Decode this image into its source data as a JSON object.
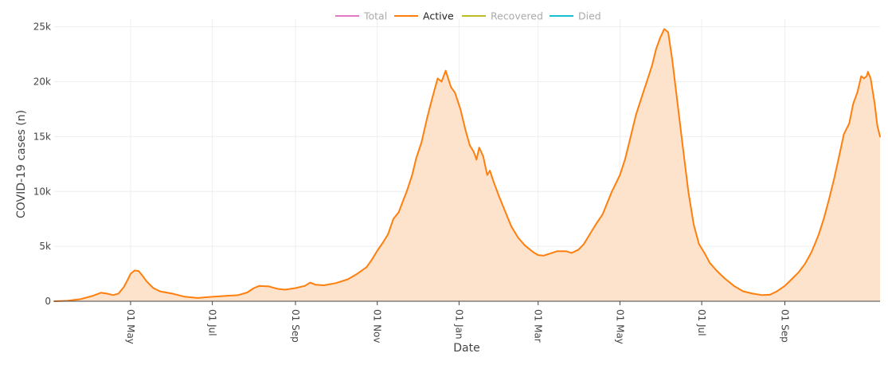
{
  "chart_data": {
    "type": "area",
    "xlabel": "Date",
    "ylabel": "COVID-19 cases (n)",
    "x_ticks": [
      {
        "date": "2020-05-01",
        "label": "01 May"
      },
      {
        "date": "2020-07-01",
        "label": "01 Jul"
      },
      {
        "date": "2020-09-01",
        "label": "01 Sep"
      },
      {
        "date": "2020-11-01",
        "label": "01 Nov"
      },
      {
        "date": "2021-01-01",
        "label": "01 Jan"
      },
      {
        "date": "2021-03-01",
        "label": "01 Mar"
      },
      {
        "date": "2021-05-01",
        "label": "01 May"
      },
      {
        "date": "2021-07-01",
        "label": "01 Jul"
      },
      {
        "date": "2021-09-01",
        "label": "01 Sep"
      }
    ],
    "y_ticks": [
      {
        "value": 0,
        "label": "0"
      },
      {
        "value": 5000,
        "label": "5k"
      },
      {
        "value": 10000,
        "label": "10k"
      },
      {
        "value": 15000,
        "label": "15k"
      },
      {
        "value": 20000,
        "label": "20k"
      },
      {
        "value": 25000,
        "label": "25k"
      }
    ],
    "xlim": [
      "2020-03-05",
      "2021-11-11"
    ],
    "ylim": [
      0,
      25700
    ],
    "grid": true,
    "legend_position": "top-center",
    "legend": [
      {
        "name": "Total",
        "color": "#e377c2",
        "active": false
      },
      {
        "name": "Active",
        "color": "#ff7f0e",
        "active": true
      },
      {
        "name": "Recovered",
        "color": "#bcbd22",
        "active": false
      },
      {
        "name": "Died",
        "color": "#17becf",
        "active": false
      }
    ],
    "series": [
      {
        "name": "Active",
        "color": "#ff7f0e",
        "fill": "#fde3cc",
        "points": [
          [
            "2020-03-05",
            0
          ],
          [
            "2020-03-15",
            40
          ],
          [
            "2020-03-25",
            200
          ],
          [
            "2020-04-03",
            500
          ],
          [
            "2020-04-09",
            780
          ],
          [
            "2020-04-14",
            680
          ],
          [
            "2020-04-18",
            560
          ],
          [
            "2020-04-22",
            700
          ],
          [
            "2020-04-26",
            1300
          ],
          [
            "2020-04-29",
            2000
          ],
          [
            "2020-05-01",
            2500
          ],
          [
            "2020-05-04",
            2800
          ],
          [
            "2020-05-07",
            2750
          ],
          [
            "2020-05-10",
            2300
          ],
          [
            "2020-05-13",
            1800
          ],
          [
            "2020-05-18",
            1200
          ],
          [
            "2020-05-23",
            900
          ],
          [
            "2020-06-01",
            700
          ],
          [
            "2020-06-10",
            420
          ],
          [
            "2020-06-20",
            300
          ],
          [
            "2020-06-30",
            400
          ],
          [
            "2020-07-10",
            480
          ],
          [
            "2020-07-20",
            550
          ],
          [
            "2020-07-27",
            800
          ],
          [
            "2020-08-01",
            1200
          ],
          [
            "2020-08-05",
            1400
          ],
          [
            "2020-08-12",
            1350
          ],
          [
            "2020-08-18",
            1150
          ],
          [
            "2020-08-24",
            1050
          ],
          [
            "2020-09-01",
            1200
          ],
          [
            "2020-09-08",
            1400
          ],
          [
            "2020-09-12",
            1700
          ],
          [
            "2020-09-16",
            1500
          ],
          [
            "2020-09-22",
            1450
          ],
          [
            "2020-10-01",
            1650
          ],
          [
            "2020-10-10",
            2000
          ],
          [
            "2020-10-17",
            2500
          ],
          [
            "2020-10-24",
            3100
          ],
          [
            "2020-10-28",
            3800
          ],
          [
            "2020-11-01",
            4600
          ],
          [
            "2020-11-05",
            5300
          ],
          [
            "2020-11-09",
            6100
          ],
          [
            "2020-11-13",
            7500
          ],
          [
            "2020-11-17",
            8100
          ],
          [
            "2020-11-21",
            9400
          ],
          [
            "2020-11-23",
            10000
          ],
          [
            "2020-11-27",
            11500
          ],
          [
            "2020-11-30",
            13000
          ],
          [
            "2020-12-04",
            14500
          ],
          [
            "2020-12-08",
            16600
          ],
          [
            "2020-12-12",
            18500
          ],
          [
            "2020-12-16",
            20300
          ],
          [
            "2020-12-19",
            20000
          ],
          [
            "2020-12-22",
            21000
          ],
          [
            "2020-12-26",
            19500
          ],
          [
            "2020-12-29",
            19000
          ],
          [
            "2021-01-02",
            17500
          ],
          [
            "2021-01-06",
            15500
          ],
          [
            "2021-01-09",
            14200
          ],
          [
            "2021-01-12",
            13600
          ],
          [
            "2021-01-14",
            12900
          ],
          [
            "2021-01-16",
            14000
          ],
          [
            "2021-01-19",
            13200
          ],
          [
            "2021-01-22",
            11500
          ],
          [
            "2021-01-24",
            11900
          ],
          [
            "2021-01-27",
            10800
          ],
          [
            "2021-01-31",
            9500
          ],
          [
            "2021-02-05",
            8000
          ],
          [
            "2021-02-09",
            6800
          ],
          [
            "2021-02-14",
            5800
          ],
          [
            "2021-02-19",
            5100
          ],
          [
            "2021-02-25",
            4500
          ],
          [
            "2021-03-01",
            4200
          ],
          [
            "2021-03-05",
            4150
          ],
          [
            "2021-03-10",
            4350
          ],
          [
            "2021-03-15",
            4550
          ],
          [
            "2021-03-22",
            4550
          ],
          [
            "2021-03-26",
            4400
          ],
          [
            "2021-03-31",
            4700
          ],
          [
            "2021-04-04",
            5200
          ],
          [
            "2021-04-08",
            6000
          ],
          [
            "2021-04-13",
            7000
          ],
          [
            "2021-04-18",
            7900
          ],
          [
            "2021-04-25",
            10000
          ],
          [
            "2021-05-01",
            11500
          ],
          [
            "2021-05-05",
            13000
          ],
          [
            "2021-05-09",
            15000
          ],
          [
            "2021-05-13",
            17000
          ],
          [
            "2021-05-17",
            18500
          ],
          [
            "2021-05-21",
            20000
          ],
          [
            "2021-05-25",
            21500
          ],
          [
            "2021-05-28",
            23000
          ],
          [
            "2021-05-31",
            24000
          ],
          [
            "2021-06-03",
            24800
          ],
          [
            "2021-06-06",
            24500
          ],
          [
            "2021-06-09",
            22000
          ],
          [
            "2021-06-13",
            18000
          ],
          [
            "2021-06-17",
            14000
          ],
          [
            "2021-06-21",
            10000
          ],
          [
            "2021-06-25",
            7000
          ],
          [
            "2021-06-29",
            5200
          ],
          [
            "2021-07-03",
            4400
          ],
          [
            "2021-07-07",
            3500
          ],
          [
            "2021-07-12",
            2800
          ],
          [
            "2021-07-18",
            2100
          ],
          [
            "2021-07-25",
            1400
          ],
          [
            "2021-08-01",
            900
          ],
          [
            "2021-08-08",
            700
          ],
          [
            "2021-08-15",
            560
          ],
          [
            "2021-08-21",
            600
          ],
          [
            "2021-08-26",
            900
          ],
          [
            "2021-09-01",
            1400
          ],
          [
            "2021-09-06",
            2000
          ],
          [
            "2021-09-11",
            2600
          ],
          [
            "2021-09-16",
            3400
          ],
          [
            "2021-09-21",
            4500
          ],
          [
            "2021-09-26",
            6000
          ],
          [
            "2021-09-30",
            7500
          ],
          [
            "2021-10-04",
            9300
          ],
          [
            "2021-10-08",
            11300
          ],
          [
            "2021-10-12",
            13500
          ],
          [
            "2021-10-15",
            15200
          ],
          [
            "2021-10-19",
            16200
          ],
          [
            "2021-10-22",
            18000
          ],
          [
            "2021-10-25",
            19000
          ],
          [
            "2021-10-28",
            20500
          ],
          [
            "2021-10-30",
            20300
          ],
          [
            "2021-11-01",
            20500
          ],
          [
            "2021-11-02",
            20900
          ],
          [
            "2021-11-04",
            20300
          ],
          [
            "2021-11-07",
            18000
          ],
          [
            "2021-11-09",
            16000
          ],
          [
            "2021-11-11",
            15000
          ]
        ]
      }
    ]
  }
}
